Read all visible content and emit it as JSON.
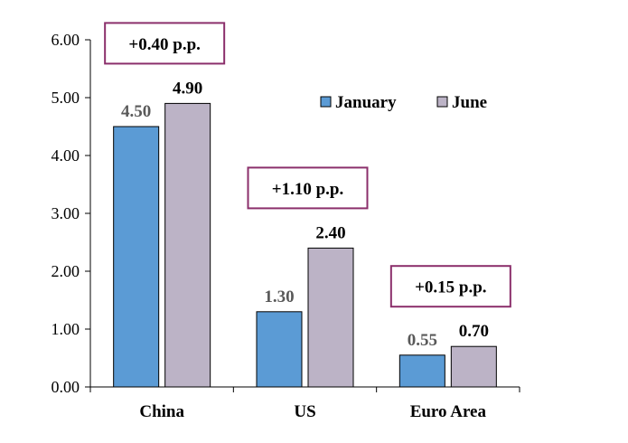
{
  "chart_data": {
    "type": "bar",
    "categories": [
      "China",
      "US",
      "Euro Area"
    ],
    "series": [
      {
        "name": "January",
        "values": [
          4.5,
          1.3,
          0.55
        ],
        "color": "#5b9bd5",
        "label_color": "#595959"
      },
      {
        "name": "June",
        "values": [
          4.9,
          2.4,
          0.7
        ],
        "color": "#bcb3c6",
        "label_color": "#000000"
      }
    ],
    "data_labels": [
      [
        "4.50",
        "1.30",
        "0.55"
      ],
      [
        "4.90",
        "2.40",
        "0.70"
      ]
    ],
    "annotations": [
      "+0.40 p.p.",
      "+1.10 p.p.",
      "+0.15 p.p."
    ],
    "annotation_border_color": "#8b2f6b",
    "ylim": [
      0,
      6
    ],
    "yticks": [
      "0.00",
      "1.00",
      "2.00",
      "3.00",
      "4.00",
      "5.00",
      "6.00"
    ],
    "legend_position": "top-right",
    "grid": false,
    "title": "",
    "xlabel": "",
    "ylabel": ""
  }
}
